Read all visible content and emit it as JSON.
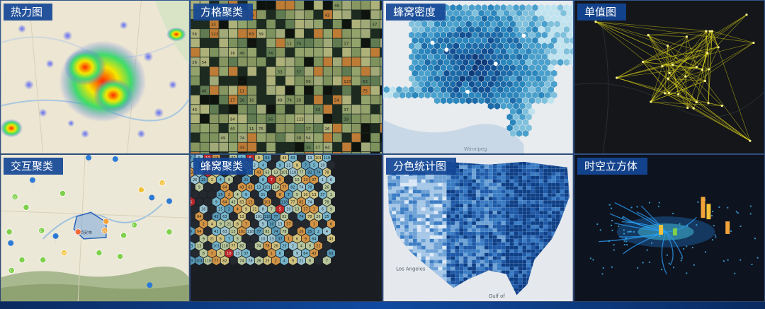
{
  "panels": [
    {
      "id": "heatmap",
      "label": "热力图",
      "theme": "light-map"
    },
    {
      "id": "grid-cluster",
      "label": "方格聚类",
      "theme": "dark-map"
    },
    {
      "id": "hex-density",
      "label": "蜂窝密度",
      "theme": "light-map"
    },
    {
      "id": "single-value",
      "label": "单值图",
      "theme": "dark-map"
    },
    {
      "id": "interactive-cluster",
      "label": "交互聚类",
      "theme": "light-map"
    },
    {
      "id": "hex-cluster",
      "label": "蜂窝聚类",
      "theme": "dark-map"
    },
    {
      "id": "choropleth",
      "label": "分色统计图",
      "theme": "light-map"
    },
    {
      "id": "spacetime-cube",
      "label": "时空立方体",
      "theme": "dark-map"
    }
  ],
  "map_text": {
    "winnipeg": "Winnipeg",
    "los_angeles": "Los Angeles",
    "gulf_of": "Gulf of",
    "xian": "西安市"
  },
  "grid_cluster_values": [
    "16",
    "49",
    "74",
    "26",
    "54",
    "43",
    "33",
    "37",
    "94",
    "56",
    "123",
    "63",
    "39",
    "40",
    "11",
    "75",
    "17",
    "26"
  ],
  "hex_cluster_values": [
    "7",
    "5",
    "10",
    "13",
    "37",
    "1",
    "6",
    "9",
    "64",
    "43",
    "63",
    "13",
    "101",
    "118",
    "77",
    "82",
    "74",
    "78",
    "26",
    "25",
    "2",
    "4",
    "9",
    "21",
    "8"
  ],
  "cluster_values": [
    "12",
    "24",
    "28",
    "5",
    "8"
  ],
  "colors": {
    "label_bg": "#1446a0",
    "heat_hot": "#ff2a00",
    "heat_mid": "#f5e600",
    "heat_cool": "#6a6cf0",
    "hex_dark": "#0d3a78",
    "hex_light": "#bfe3ef",
    "line_yellow": "#f4e81a",
    "cube_blue": "#2a9df4"
  }
}
